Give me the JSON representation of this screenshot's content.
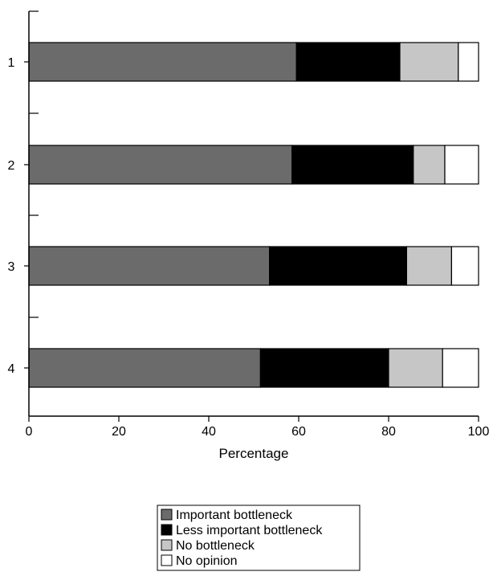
{
  "chart_data": {
    "type": "bar",
    "orientation": "horizontal",
    "stacked": true,
    "categories": [
      "1",
      "2",
      "3",
      "4"
    ],
    "series": [
      {
        "name": "Important bottleneck",
        "values": [
          59.5,
          58.5,
          53.5,
          51.5
        ],
        "color": "#6b6b6b"
      },
      {
        "name": "Less important bottleneck",
        "values": [
          23.0,
          27.0,
          30.5,
          28.5
        ],
        "color": "#000000"
      },
      {
        "name": "No bottleneck",
        "values": [
          13.0,
          7.0,
          10.0,
          12.0
        ],
        "color": "#c6c6c6"
      },
      {
        "name": "No opinion",
        "values": [
          4.5,
          7.5,
          6.0,
          8.0
        ],
        "color": "#ffffff"
      }
    ],
    "xlabel": "Percentage",
    "ylabel": "",
    "title": "",
    "xlim": [
      0,
      100
    ],
    "xticks": [
      0,
      20,
      40,
      60,
      80,
      100
    ],
    "grid": false,
    "legend_position": "bottom-center"
  }
}
